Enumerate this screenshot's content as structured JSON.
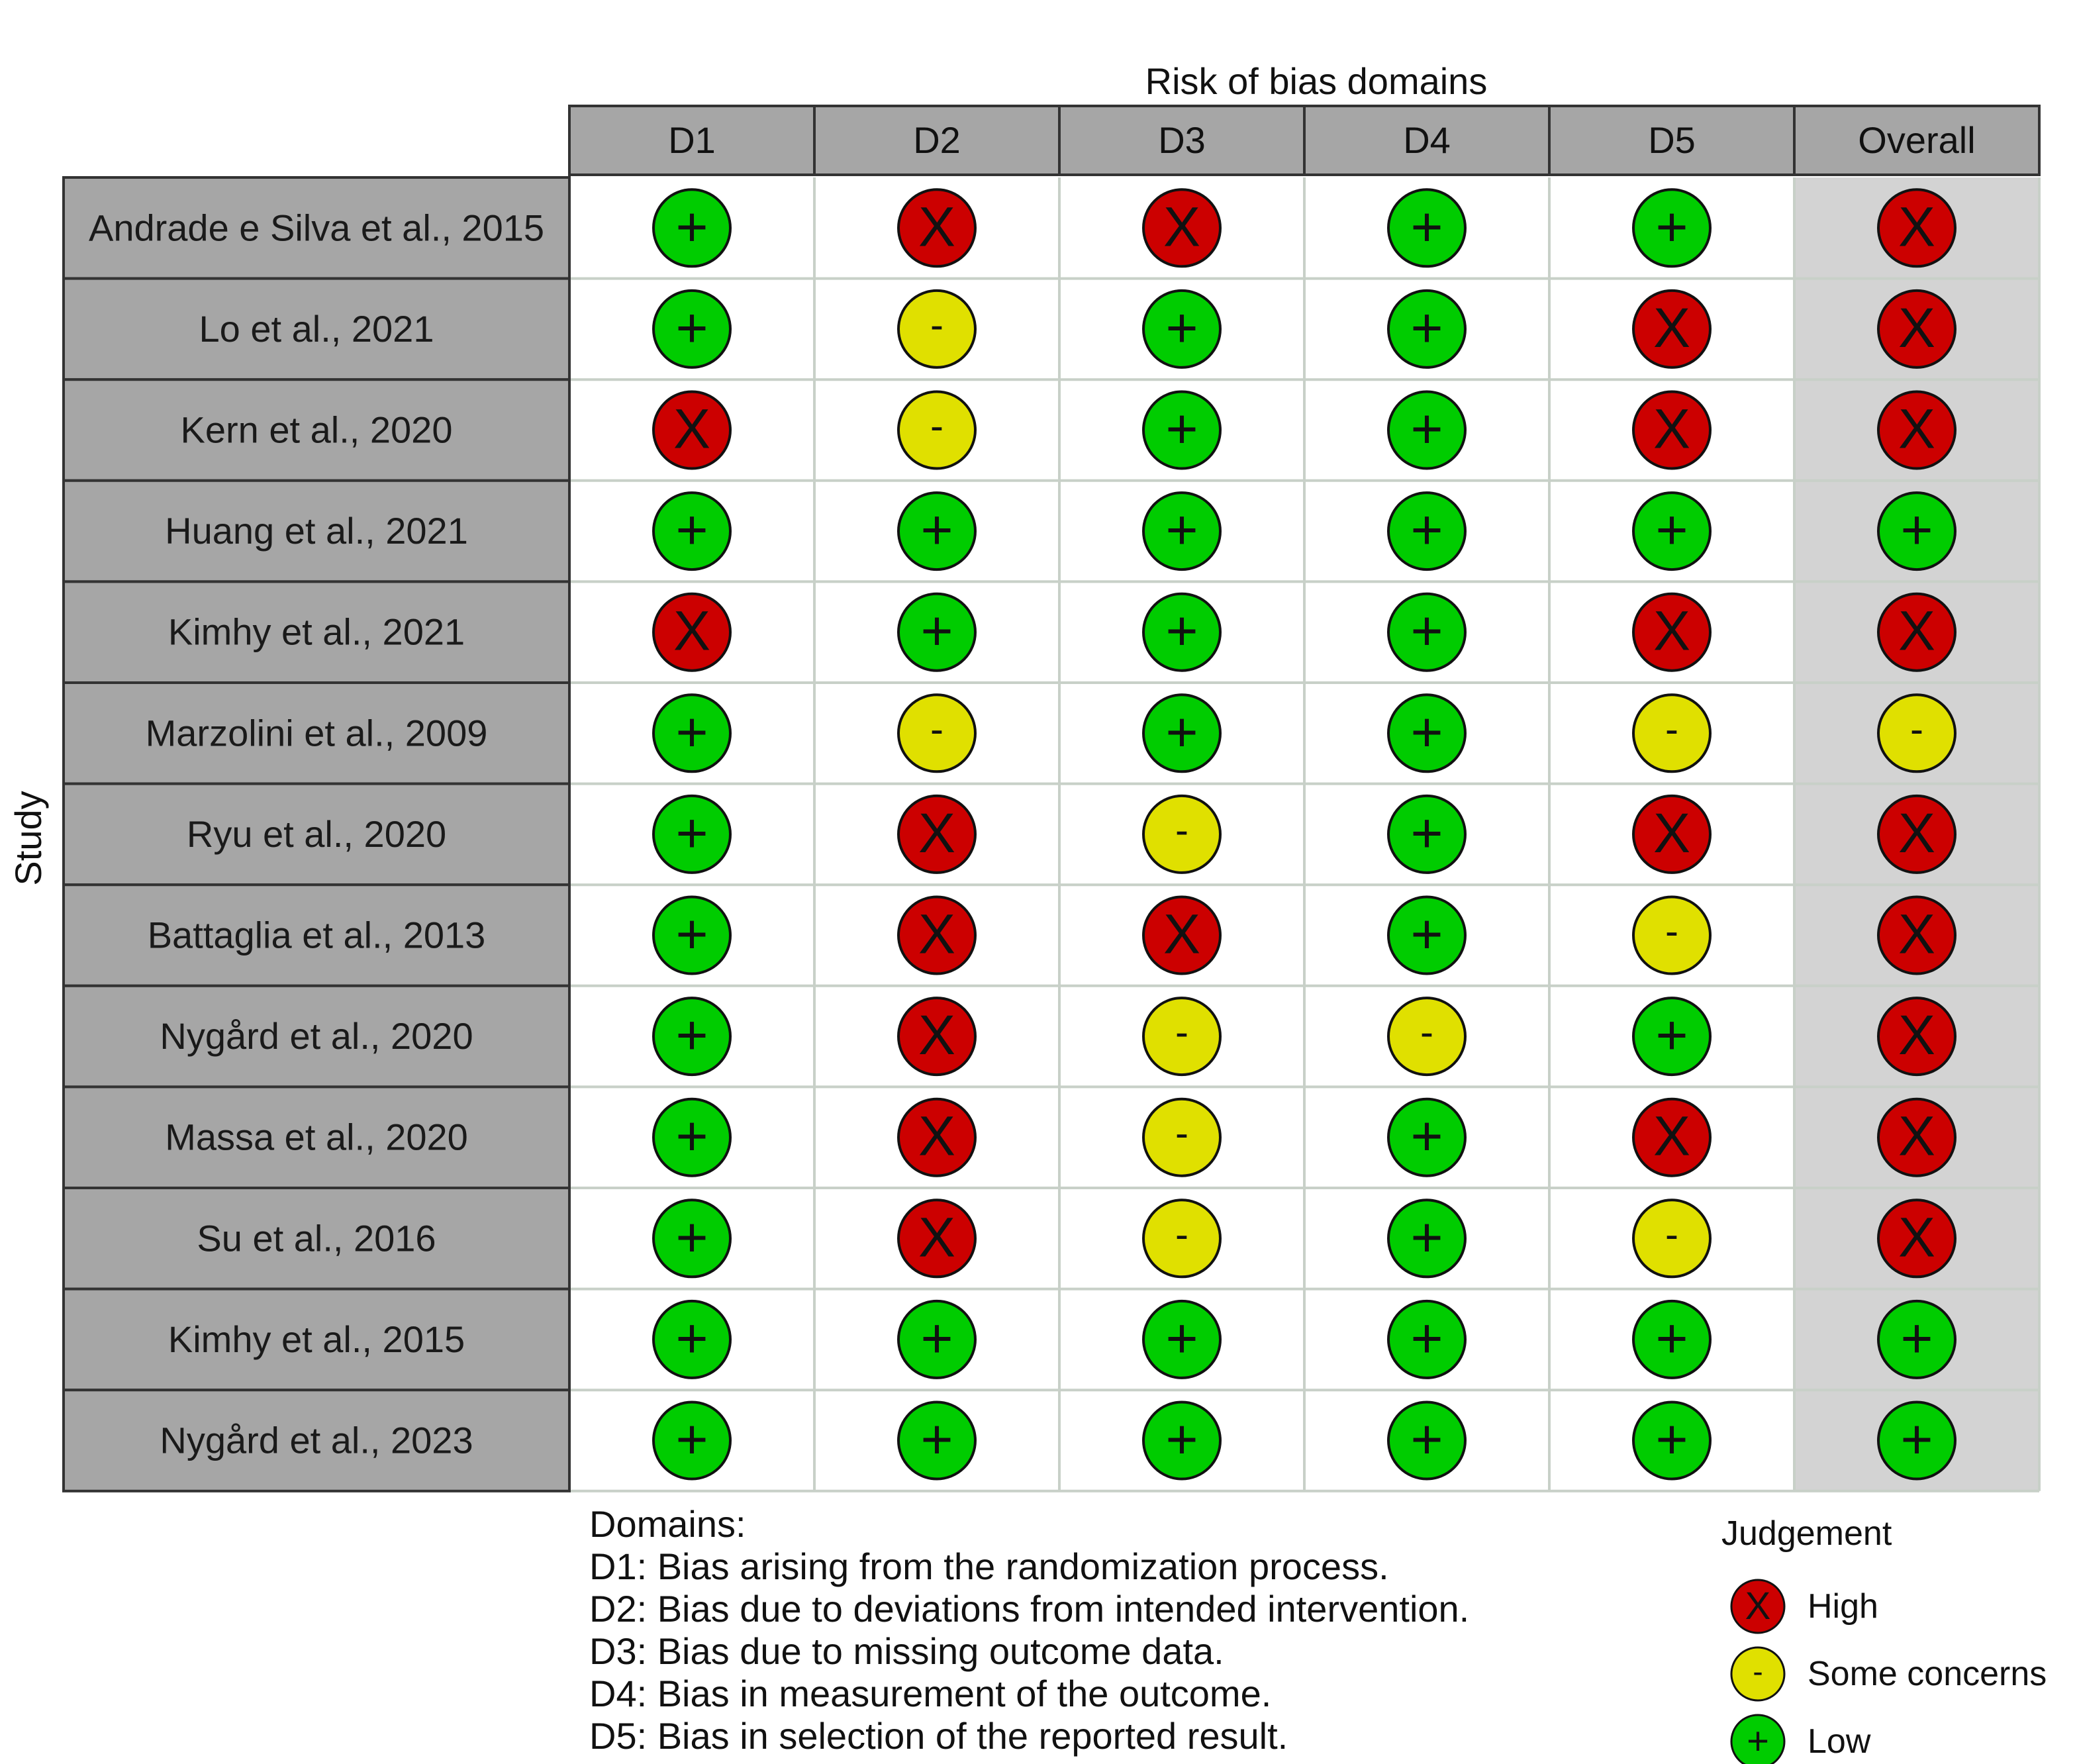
{
  "chart_data": {
    "type": "table",
    "title": "Risk of bias domains",
    "ylabel": "Study",
    "columns": [
      "D1",
      "D2",
      "D3",
      "D4",
      "D5",
      "Overall"
    ],
    "rows": [
      {
        "study": "Andrade e Silva et al., 2015",
        "judgements": [
          "+",
          "X",
          "X",
          "+",
          "+",
          "X"
        ]
      },
      {
        "study": "Lo et al., 2021",
        "judgements": [
          "+",
          "-",
          "+",
          "+",
          "X",
          "X"
        ]
      },
      {
        "study": "Kern et al., 2020",
        "judgements": [
          "X",
          "-",
          "+",
          "+",
          "X",
          "X"
        ]
      },
      {
        "study": "Huang et al., 2021",
        "judgements": [
          "+",
          "+",
          "+",
          "+",
          "+",
          "+"
        ]
      },
      {
        "study": "Kimhy et al., 2021",
        "judgements": [
          "X",
          "+",
          "+",
          "+",
          "X",
          "X"
        ]
      },
      {
        "study": "Marzolini et al., 2009",
        "judgements": [
          "+",
          "-",
          "+",
          "+",
          "-",
          "-"
        ]
      },
      {
        "study": "Ryu et al., 2020",
        "judgements": [
          "+",
          "X",
          "-",
          "+",
          "X",
          "X"
        ]
      },
      {
        "study": "Battaglia et al., 2013",
        "judgements": [
          "+",
          "X",
          "X",
          "+",
          "-",
          "X"
        ]
      },
      {
        "study": "Nygård et al., 2020",
        "judgements": [
          "+",
          "X",
          "-",
          "-",
          "+",
          "X"
        ]
      },
      {
        "study": "Massa et al., 2020",
        "judgements": [
          "+",
          "X",
          "-",
          "+",
          "X",
          "X"
        ]
      },
      {
        "study": "Su et al., 2016",
        "judgements": [
          "+",
          "X",
          "-",
          "+",
          "-",
          "X"
        ]
      },
      {
        "study": "Kimhy et al., 2015",
        "judgements": [
          "+",
          "+",
          "+",
          "+",
          "+",
          "+"
        ]
      },
      {
        "study": "Nygård et al., 2023",
        "judgements": [
          "+",
          "+",
          "+",
          "+",
          "+",
          "+"
        ]
      }
    ],
    "domains_title": "Domains:",
    "domain_descriptions": [
      "D1: Bias arising from the randomization process.",
      "D2: Bias due to deviations from intended intervention.",
      "D3: Bias due to missing outcome data.",
      "D4: Bias in measurement of the outcome.",
      "D5: Bias in selection of the reported result."
    ],
    "legend": {
      "title": "Judgement",
      "items": [
        {
          "symbol": "X",
          "label": "High",
          "color": "#cc0000"
        },
        {
          "symbol": "-",
          "label": "Some concerns",
          "color": "#e0e000"
        },
        {
          "symbol": "+",
          "label": "Low",
          "color": "#00cc00"
        }
      ]
    },
    "colors": {
      "header_fill": "#a6a6a6",
      "study_fill": "#a6a6a6",
      "overall_fill": "#d3d3d3",
      "grid_line": "#c8d0c8"
    }
  }
}
